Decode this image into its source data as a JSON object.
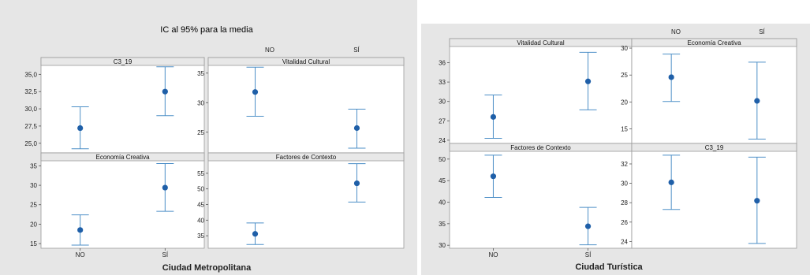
{
  "panels_left": {
    "title": "IC al 95% para la media",
    "xlabel": "Ciudad Metropolitana",
    "column_headers": [
      "NO",
      "SÍ"
    ],
    "categories": [
      "NO",
      "SÍ"
    ]
  },
  "panels_right": {
    "title": "",
    "xlabel": "Ciudad Turística",
    "column_headers": [
      "NO",
      "SÍ"
    ],
    "categories": [
      "NO",
      "SÍ"
    ]
  },
  "colors": {
    "interval": "#4d8fc7",
    "point": "#1f5fa8",
    "background": "#e6e6e6",
    "panel": "#ffffff",
    "strip": "#e8e8e8"
  },
  "chart_data": [
    {
      "type": "interval",
      "panel": "left-top-left",
      "title": "C3_19",
      "categories": [
        "NO",
        "SÍ"
      ],
      "means": [
        27.2,
        32.5
      ],
      "lower": [
        24.2,
        29.0
      ],
      "upper": [
        30.3,
        36.1
      ],
      "ylim": [
        23.6,
        36.3
      ],
      "yticks": [
        25.0,
        27.5,
        30.0,
        32.5,
        35.0
      ],
      "ytick_labels": [
        "25,0",
        "27,5",
        "30,0",
        "32,5",
        "35,0"
      ]
    },
    {
      "type": "interval",
      "panel": "left-top-right",
      "title": "Vitalidad Cultural",
      "categories": [
        "NO",
        "SÍ"
      ],
      "means": [
        31.8,
        25.7
      ],
      "lower": [
        27.7,
        22.3
      ],
      "upper": [
        36.0,
        28.9
      ],
      "ylim": [
        21.5,
        36.3
      ],
      "yticks": [
        25,
        30,
        35
      ],
      "ytick_labels": [
        "25",
        "30",
        "35"
      ]
    },
    {
      "type": "interval",
      "panel": "left-bottom-left",
      "title": "Economía Creativa",
      "categories": [
        "NO",
        "SÍ"
      ],
      "means": [
        18.5,
        29.4
      ],
      "lower": [
        14.6,
        23.3
      ],
      "upper": [
        22.4,
        35.6
      ],
      "ylim": [
        13.8,
        36.3
      ],
      "yticks": [
        15,
        20,
        25,
        30,
        35
      ],
      "ytick_labels": [
        "15",
        "20",
        "25",
        "30",
        "35"
      ]
    },
    {
      "type": "interval",
      "panel": "left-bottom-right",
      "title": "Factores de Contexto",
      "categories": [
        "NO",
        "SÍ"
      ],
      "means": [
        35.6,
        51.8
      ],
      "lower": [
        32.2,
        45.8
      ],
      "upper": [
        39.1,
        58.1
      ],
      "ylim": [
        31.0,
        59.0
      ],
      "yticks": [
        35,
        40,
        45,
        50,
        55
      ],
      "ytick_labels": [
        "35",
        "40",
        "45",
        "50",
        "55"
      ]
    },
    {
      "type": "interval",
      "panel": "right-top-left",
      "title": "Vitalidad Cultural",
      "categories": [
        "NO",
        "SÍ"
      ],
      "means": [
        27.6,
        33.1
      ],
      "lower": [
        24.3,
        28.7
      ],
      "upper": [
        31.0,
        37.6
      ],
      "ylim": [
        23.5,
        38.5
      ],
      "yticks": [
        24,
        27,
        30,
        33,
        36
      ],
      "ytick_labels": [
        "24",
        "27",
        "30",
        "33",
        "36"
      ]
    },
    {
      "type": "interval",
      "panel": "right-top-right",
      "title": "Economía Creativa",
      "categories": [
        "NO",
        "SÍ"
      ],
      "means": [
        24.6,
        20.2
      ],
      "lower": [
        20.1,
        13.1
      ],
      "upper": [
        28.9,
        27.4
      ],
      "ylim": [
        12.3,
        30.3
      ],
      "yticks": [
        15,
        20,
        25,
        30
      ],
      "ytick_labels": [
        "15",
        "20",
        "25",
        "30"
      ]
    },
    {
      "type": "interval",
      "panel": "right-bottom-left",
      "title": "Factores de Contexto",
      "categories": [
        "NO",
        "SÍ"
      ],
      "means": [
        46.0,
        34.4
      ],
      "lower": [
        41.1,
        30.1
      ],
      "upper": [
        50.9,
        38.8
      ],
      "ylim": [
        29.3,
        51.8
      ],
      "yticks": [
        30,
        35,
        40,
        45,
        50
      ],
      "ytick_labels": [
        "30",
        "35",
        "40",
        "45",
        "50"
      ]
    },
    {
      "type": "interval",
      "panel": "right-bottom-right",
      "title": "C3_19",
      "categories": [
        "NO",
        "SÍ"
      ],
      "means": [
        30.1,
        28.2
      ],
      "lower": [
        27.3,
        23.8
      ],
      "upper": [
        32.9,
        32.7
      ],
      "ylim": [
        23.3,
        33.3
      ],
      "yticks": [
        24,
        26,
        28,
        30,
        32
      ],
      "ytick_labels": [
        "24",
        "26",
        "28",
        "30",
        "32"
      ]
    }
  ]
}
